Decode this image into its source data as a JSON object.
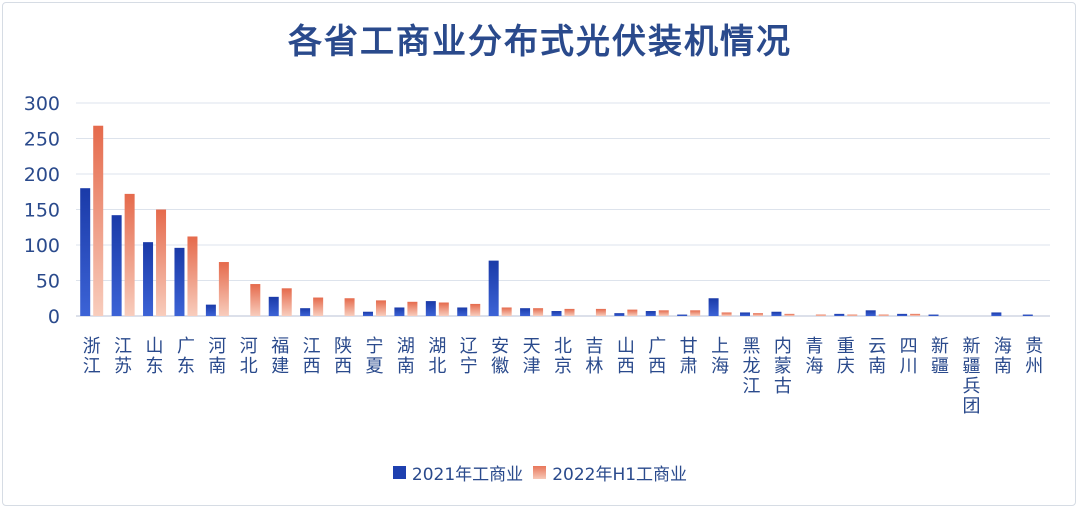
{
  "chart_data": {
    "type": "bar",
    "title": "各省工商业分布式光伏装机情况",
    "categories": [
      "浙江",
      "江苏",
      "山东",
      "广东",
      "河南",
      "河北",
      "福建",
      "江西",
      "陕西",
      "宁夏",
      "湖南",
      "湖北",
      "辽宁",
      "安徽",
      "天津",
      "北京",
      "吉林",
      "山西",
      "广西",
      "甘肃",
      "上海",
      "黑龙江",
      "内蒙古",
      "青海",
      "重庆",
      "云南",
      "四川",
      "新疆",
      "新疆兵团",
      "海南",
      "贵州"
    ],
    "series": [
      {
        "name": "2021年工商业",
        "color": "#1e40af",
        "values": [
          180,
          142,
          104,
          96,
          16,
          0,
          27,
          11,
          0,
          6,
          12,
          21,
          12,
          78,
          11,
          7,
          0,
          4,
          7,
          2,
          25,
          5,
          6,
          0,
          3,
          8,
          3,
          2,
          0,
          5,
          2
        ]
      },
      {
        "name": "2022年H1工商业",
        "color": "#e8765a",
        "values": [
          268,
          172,
          150,
          112,
          76,
          45,
          39,
          26,
          25,
          22,
          20,
          19,
          17,
          12,
          11,
          10,
          10,
          9,
          8,
          8,
          5,
          4,
          3,
          2,
          2,
          2,
          3,
          0,
          0,
          0,
          0
        ]
      }
    ],
    "ylim": [
      0,
      300
    ],
    "yticks": [
      0,
      50,
      100,
      150,
      200,
      250,
      300
    ],
    "grid": true,
    "legend": "bottom"
  }
}
